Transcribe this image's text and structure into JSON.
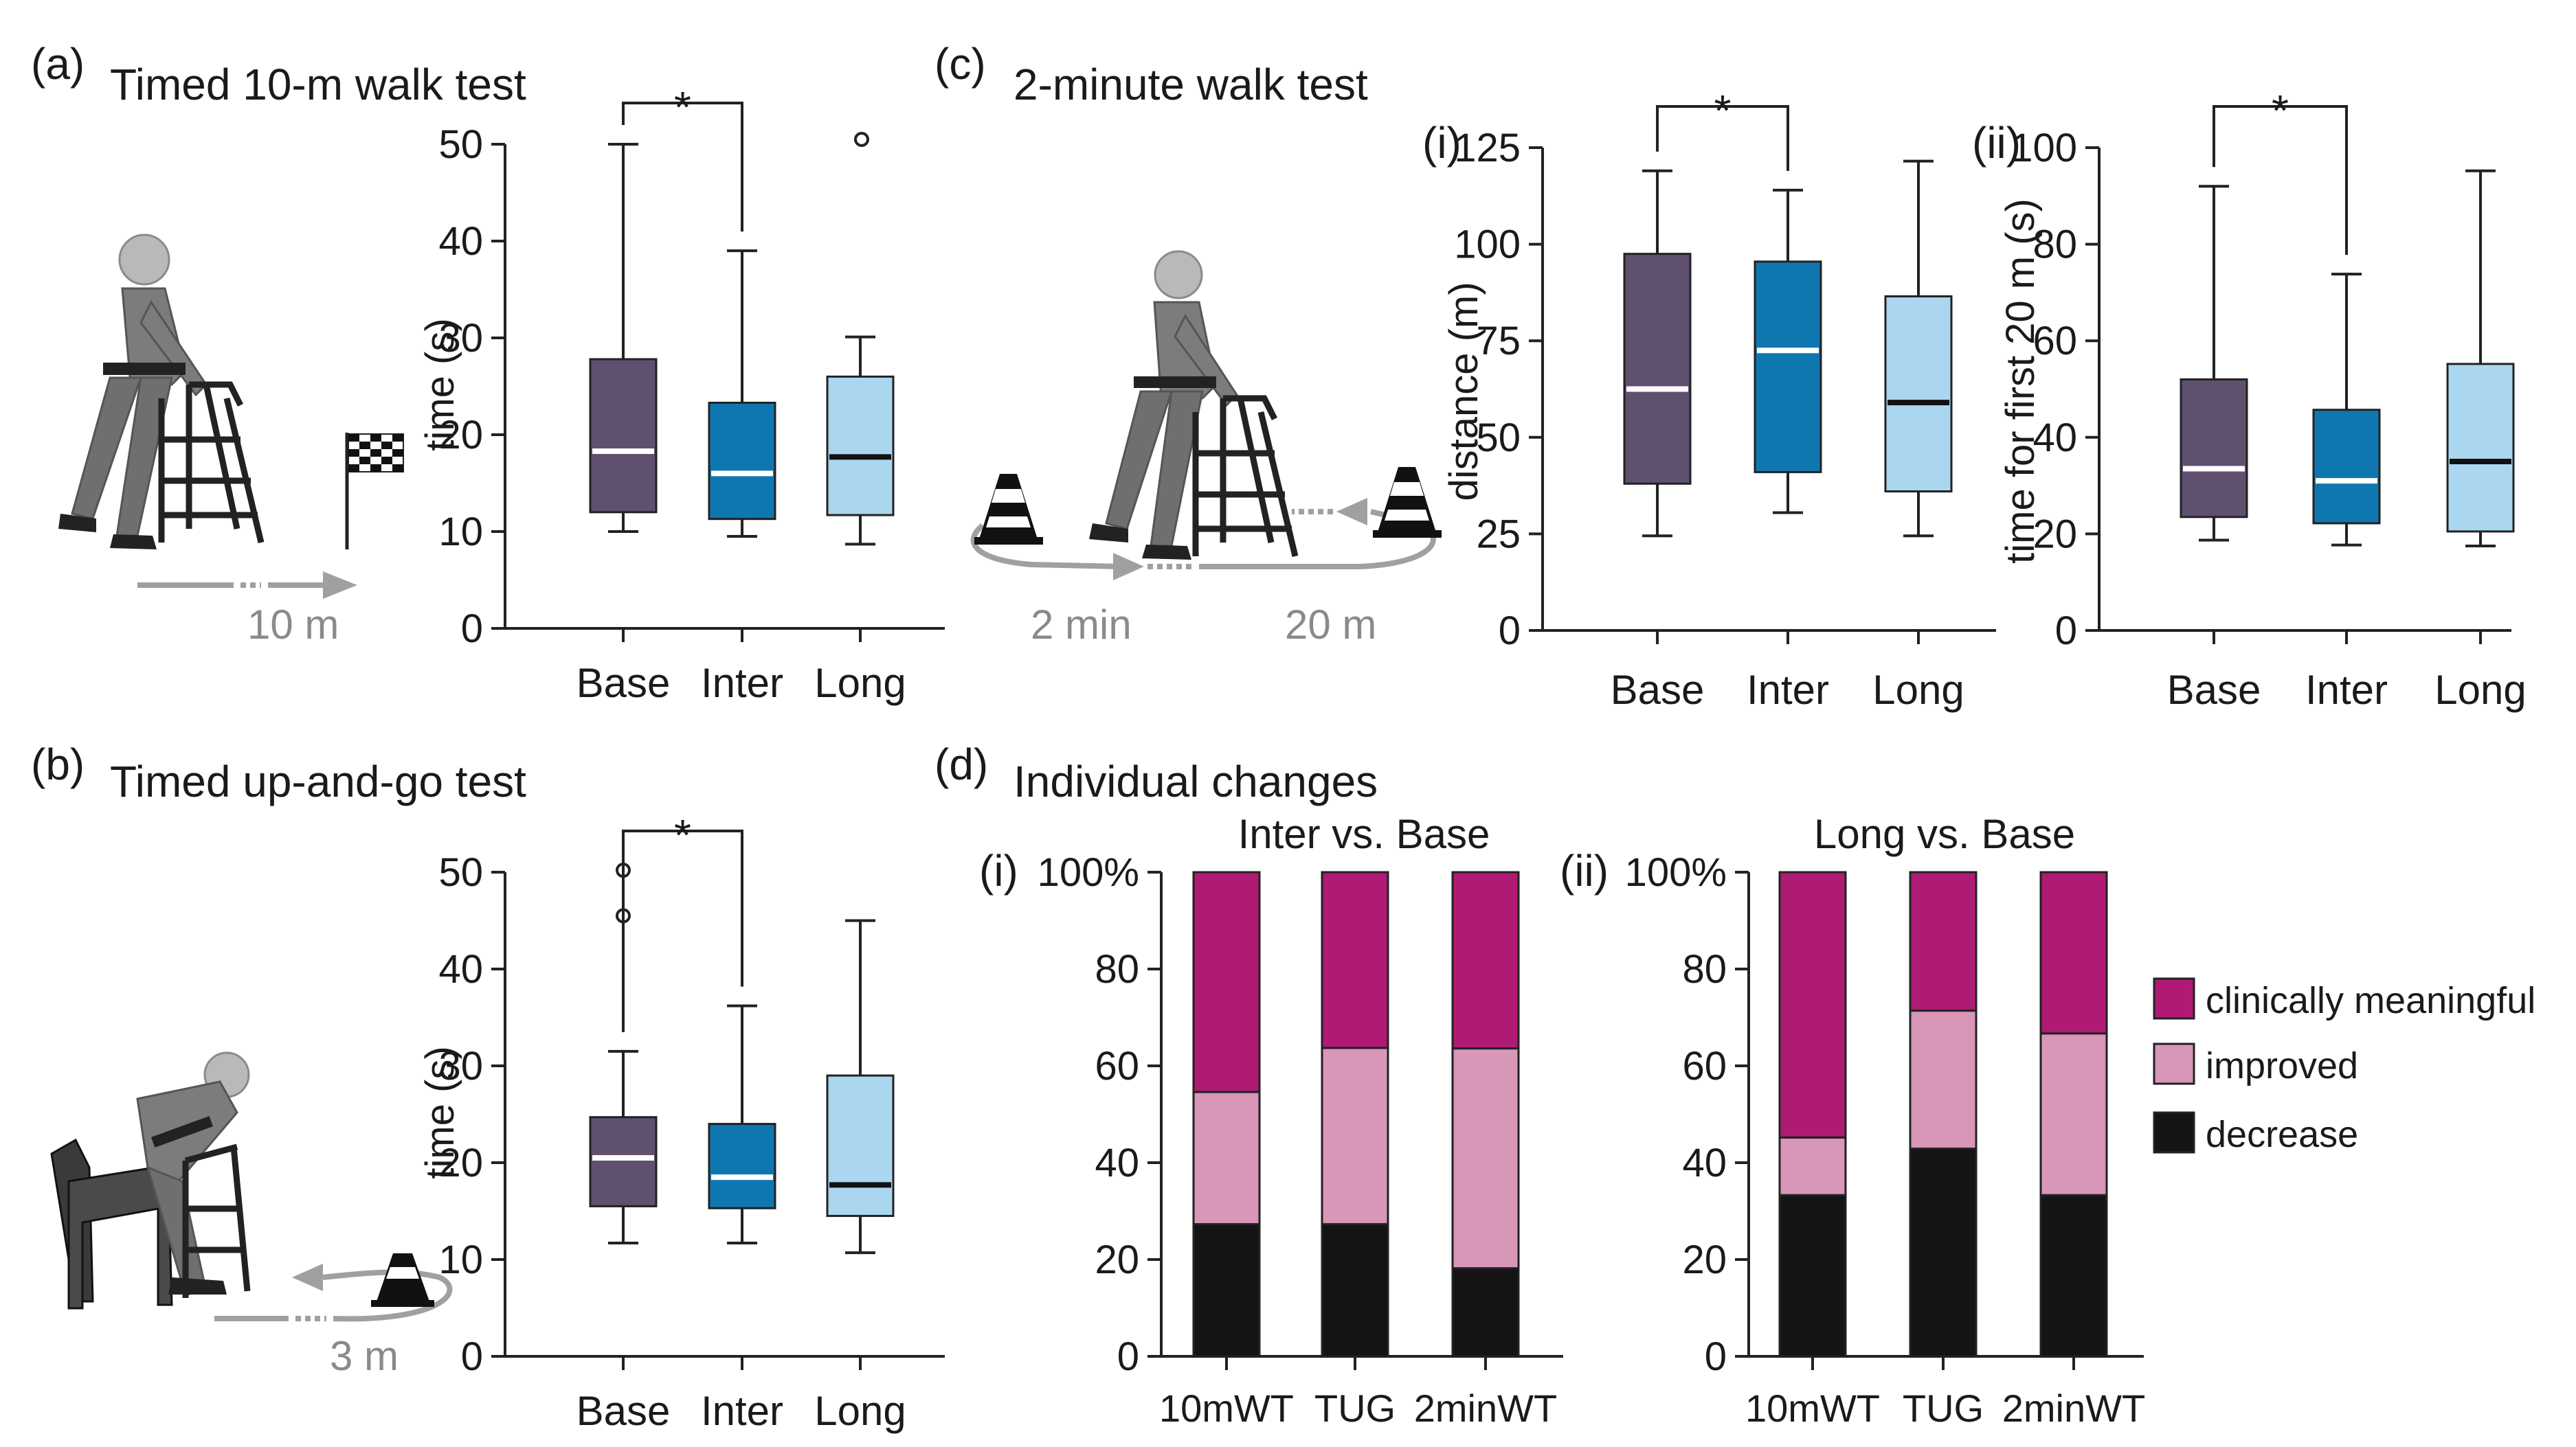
{
  "colors": {
    "base": "#605070",
    "inter": "#0f77b0",
    "long": "#abd6ef",
    "clinically": "#af1a74",
    "improved": "#d896b9",
    "decrease": "#141414",
    "figure_gray": "#8a8a8a",
    "arrow_gray": "#a0a0a0"
  },
  "panels": {
    "a": {
      "letter": "(a)",
      "title": "Timed 10-m walk test",
      "distance_label": "10 m"
    },
    "b": {
      "letter": "(b)",
      "title": "Timed up-and-go test",
      "distance_label": "3 m"
    },
    "c": {
      "letter": "(c)",
      "title": "2-minute walk test",
      "time_label": "2 min",
      "distance_label": "20 m",
      "sub_i": "(i)",
      "sub_ii": "(ii)"
    },
    "d": {
      "letter": "(d)",
      "title": "Individual changes",
      "sub_i": "(i)",
      "sub_ii": "(ii)"
    }
  },
  "chart_data": [
    {
      "id": "a",
      "type": "box",
      "ylabel": "time (s)",
      "ylim": [
        0,
        50
      ],
      "yticks": [
        "0",
        "10",
        "20",
        "30",
        "40",
        "50"
      ],
      "categories": [
        "Base",
        "Inter",
        "Long"
      ],
      "boxes": [
        {
          "whislo": 10,
          "q1": 12,
          "med": 18.3,
          "q3": 27.8,
          "whishi": 50,
          "fliers": []
        },
        {
          "whislo": 9.5,
          "q1": 11.3,
          "med": 16,
          "q3": 23.3,
          "whishi": 39,
          "fliers": []
        },
        {
          "whislo": 8.7,
          "q1": 11.7,
          "med": 17.7,
          "q3": 26,
          "whishi": 30.1,
          "fliers": [
            50.5
          ]
        }
      ],
      "significance": {
        "from": 0,
        "to": 1,
        "label": "*"
      }
    },
    {
      "id": "b",
      "type": "box",
      "ylabel": "time (s)",
      "ylim": [
        0,
        50
      ],
      "yticks": [
        "0",
        "10",
        "20",
        "30",
        "40",
        "50"
      ],
      "categories": [
        "Base",
        "Inter",
        "Long"
      ],
      "boxes": [
        {
          "whislo": 11.7,
          "q1": 15.5,
          "med": 20.5,
          "q3": 24.7,
          "whishi": 31.5,
          "fliers": [
            50.2,
            45.5
          ]
        },
        {
          "whislo": 11.7,
          "q1": 15.3,
          "med": 18.5,
          "q3": 24,
          "whishi": 36.2,
          "fliers": []
        },
        {
          "whislo": 10.7,
          "q1": 14.5,
          "med": 17.7,
          "q3": 29,
          "whishi": 45,
          "fliers": []
        }
      ],
      "significance": {
        "from": 0,
        "to": 1,
        "label": "*"
      }
    },
    {
      "id": "c-i",
      "type": "box",
      "ylabel": "distance (m)",
      "ylim": [
        0,
        125
      ],
      "yticks": [
        "0",
        "25",
        "50",
        "75",
        "100",
        "125"
      ],
      "categories": [
        "Base",
        "Inter",
        "Long"
      ],
      "boxes": [
        {
          "whislo": 24.5,
          "q1": 38,
          "med": 62.5,
          "q3": 97.5,
          "whishi": 119,
          "fliers": []
        },
        {
          "whislo": 30.5,
          "q1": 41,
          "med": 72.5,
          "q3": 95.5,
          "whishi": 114,
          "fliers": []
        },
        {
          "whislo": 24.5,
          "q1": 36,
          "med": 59,
          "q3": 86.5,
          "whishi": 121.5,
          "fliers": []
        }
      ],
      "significance": {
        "from": 0,
        "to": 1,
        "label": "*"
      }
    },
    {
      "id": "c-ii",
      "type": "box",
      "ylabel": "time for first 20 m (s)",
      "ylim": [
        0,
        100
      ],
      "yticks": [
        "0",
        "20",
        "40",
        "60",
        "80",
        "100"
      ],
      "categories": [
        "Base",
        "Inter",
        "Long"
      ],
      "boxes": [
        {
          "whislo": 18.7,
          "q1": 23.5,
          "med": 33.5,
          "q3": 52,
          "whishi": 92,
          "fliers": []
        },
        {
          "whislo": 17.7,
          "q1": 22.2,
          "med": 31,
          "q3": 45.7,
          "whishi": 73.8,
          "fliers": []
        },
        {
          "whislo": 17.5,
          "q1": 20.5,
          "med": 35,
          "q3": 55.2,
          "whishi": 95.2,
          "fliers": []
        }
      ],
      "significance": {
        "from": 0,
        "to": 1,
        "label": "*"
      }
    },
    {
      "id": "d-i",
      "type": "stacked-bar",
      "title": "Inter vs. Base",
      "ylim": [
        0,
        100
      ],
      "yticks": [
        "0",
        "20",
        "40",
        "60",
        "80",
        "100%"
      ],
      "categories": [
        "10mWT",
        "TUG",
        "2minWT"
      ],
      "series": [
        {
          "name": "decrease",
          "values": [
            27.3,
            27.3,
            18.2
          ]
        },
        {
          "name": "improved",
          "values": [
            27.3,
            36.4,
            45.4
          ]
        },
        {
          "name": "clinically meaningful",
          "values": [
            45.4,
            36.3,
            36.4
          ]
        }
      ]
    },
    {
      "id": "d-ii",
      "type": "stacked-bar",
      "title": "Long vs. Base",
      "ylim": [
        0,
        100
      ],
      "yticks": [
        "0",
        "20",
        "40",
        "60",
        "80",
        "100%"
      ],
      "categories": [
        "10mWT",
        "TUG",
        "2minWT"
      ],
      "series": [
        {
          "name": "decrease",
          "values": [
            33.3,
            42.9,
            33.3
          ]
        },
        {
          "name": "improved",
          "values": [
            11.9,
            28.5,
            33.4
          ]
        },
        {
          "name": "clinically meaningful",
          "values": [
            54.8,
            28.6,
            33.3
          ]
        }
      ]
    }
  ],
  "legend": [
    {
      "name": "clinically meaningful",
      "color_key": "clinically"
    },
    {
      "name": "improved",
      "color_key": "improved"
    },
    {
      "name": "decrease",
      "color_key": "decrease"
    }
  ]
}
